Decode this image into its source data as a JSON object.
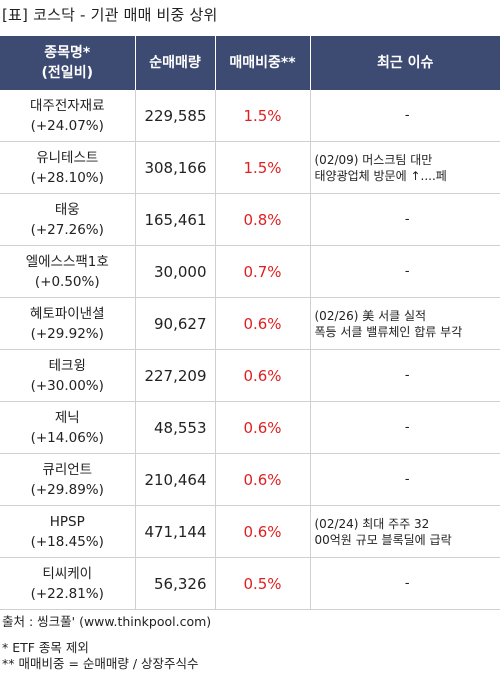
{
  "title": "[표] 코스닥 - 기관 매매 비중 상위",
  "headers": {
    "name_line1": "종목명*",
    "name_line2": "(전일비)",
    "volume": "순매매량",
    "ratio": "매매비중**",
    "issue": "최근 이슈"
  },
  "rows": [
    {
      "name": "대주전자재료",
      "change": "(+24.07%)",
      "volume": "229,585",
      "ratio": "1.5%",
      "issue1": "-",
      "issue2": ""
    },
    {
      "name": "유니테스트",
      "change": "(+28.10%)",
      "volume": "308,166",
      "ratio": "1.5%",
      "issue1": "(02/09) 머스크팀 대만",
      "issue2": "태양광업체 방문에 ↑....페"
    },
    {
      "name": "태웅",
      "change": "(+27.26%)",
      "volume": "165,461",
      "ratio": "0.8%",
      "issue1": "-",
      "issue2": ""
    },
    {
      "name": "엘에스스팩1호",
      "change": "(+0.50%)",
      "volume": "30,000",
      "ratio": "0.7%",
      "issue1": "-",
      "issue2": ""
    },
    {
      "name": "혜토파이낸셜",
      "change": "(+29.92%)",
      "volume": "90,627",
      "ratio": "0.6%",
      "issue1": "(02/26) 美 서클 실적",
      "issue2": "폭등 서클 밸류체인 합류 부각"
    },
    {
      "name": "테크윙",
      "change": "(+30.00%)",
      "volume": "227,209",
      "ratio": "0.6%",
      "issue1": "-",
      "issue2": ""
    },
    {
      "name": "제닉",
      "change": "(+14.06%)",
      "volume": "48,553",
      "ratio": "0.6%",
      "issue1": "-",
      "issue2": ""
    },
    {
      "name": "큐리언트",
      "change": "(+29.89%)",
      "volume": "210,464",
      "ratio": "0.6%",
      "issue1": "-",
      "issue2": ""
    },
    {
      "name": "HPSP",
      "change": "(+18.45%)",
      "volume": "471,144",
      "ratio": "0.6%",
      "issue1": "(02/24) 최대 주주 32",
      "issue2": "00억원 규모 블록딜에 급락"
    },
    {
      "name": "티씨케이",
      "change": "(+22.81%)",
      "volume": "56,326",
      "ratio": "0.5%",
      "issue1": "-",
      "issue2": ""
    }
  ],
  "footer": {
    "source": "출처 : 씽크풀' (www.thinkpool.com)",
    "note1": "* ETF 종목 제외",
    "note2": "** 매매비중 = 순매매량 / 상장주식수"
  },
  "colors": {
    "header_bg": "#3d4a72",
    "ratio_text": "#e02020"
  }
}
